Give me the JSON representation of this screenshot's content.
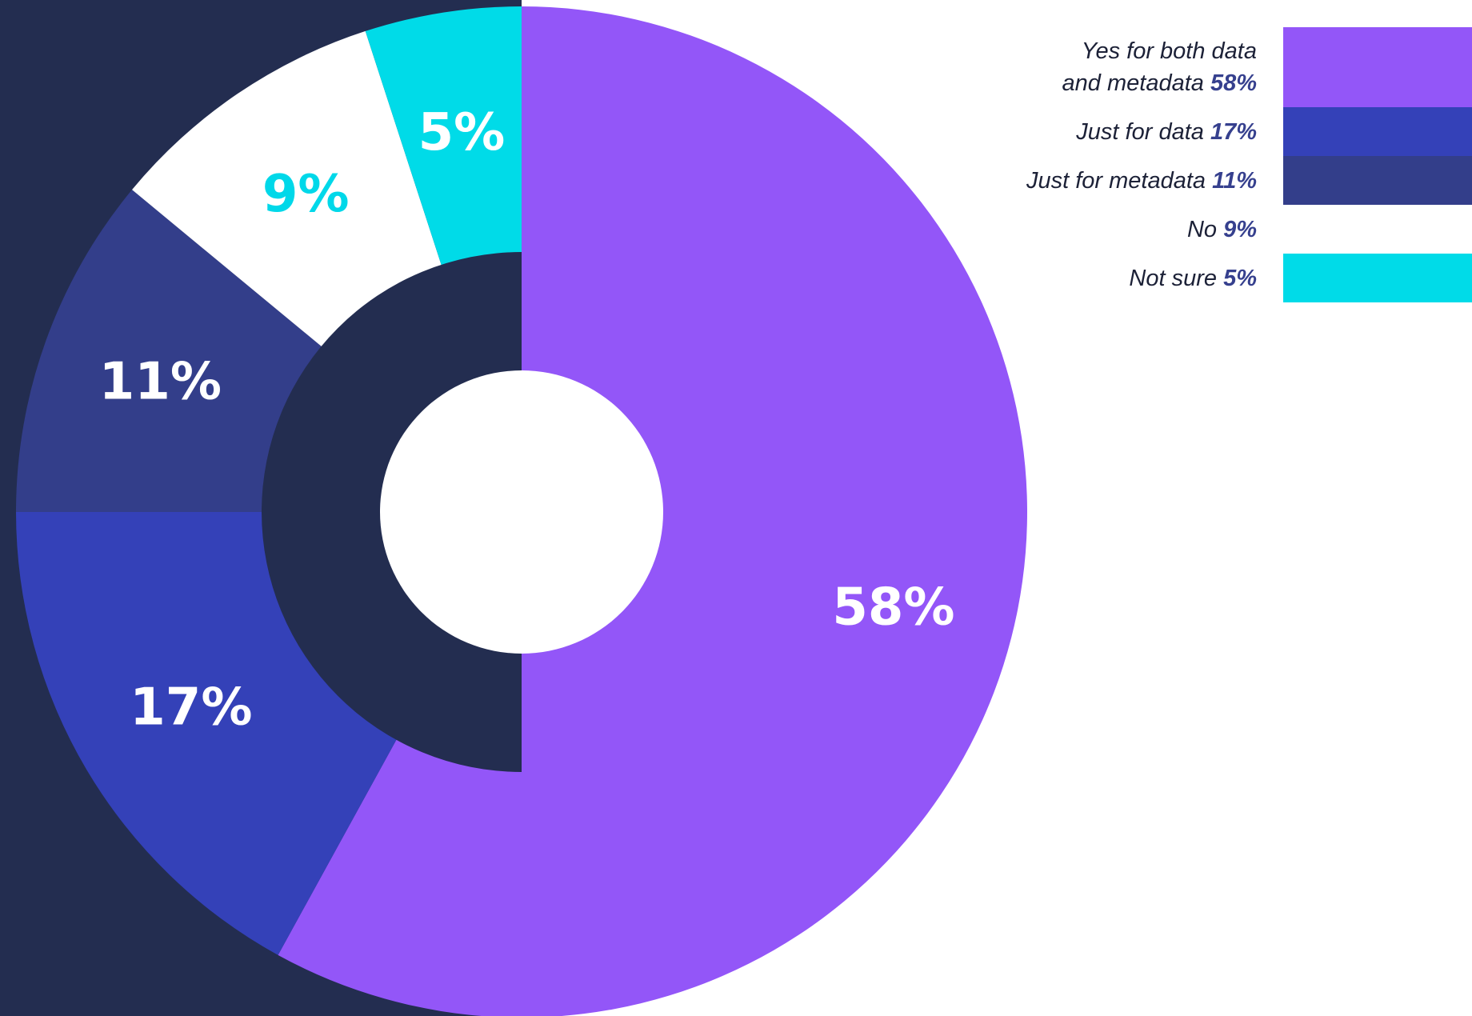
{
  "chart_data": {
    "type": "pie",
    "variant": "donut",
    "categories": [
      "Yes for both data and metadata",
      "Just for data",
      "Just for metadata",
      "No",
      "Not sure"
    ],
    "values": [
      58,
      17,
      11,
      9,
      5
    ],
    "series": [
      {
        "name": "Yes for both data and metadata",
        "value": 58,
        "value_label": "58%",
        "legend_lines": [
          "Yes for both data",
          "and metadata"
        ],
        "color": "#9356f8",
        "label_color": "#ffffff"
      },
      {
        "name": "Just for data",
        "value": 17,
        "value_label": "17%",
        "legend_lines": [
          "Just for data"
        ],
        "color": "#3441b8",
        "label_color": "#ffffff"
      },
      {
        "name": "Just for metadata",
        "value": 11,
        "value_label": "11%",
        "legend_lines": [
          "Just for metadata"
        ],
        "color": "#333e8a",
        "label_color": "#ffffff"
      },
      {
        "name": "No",
        "value": 9,
        "value_label": "9%",
        "legend_lines": [
          "No"
        ],
        "color": "#ffffff",
        "label_color": "#00d8e9"
      },
      {
        "name": "Not sure",
        "value": 5,
        "value_label": "5%",
        "legend_lines": [
          "Not sure"
        ],
        "color": "#00dbe8",
        "label_color": "#ffffff"
      }
    ],
    "title": "",
    "legend_position": "top-right",
    "background_color": "#232d50",
    "inner_ring_color": "#232d50"
  }
}
